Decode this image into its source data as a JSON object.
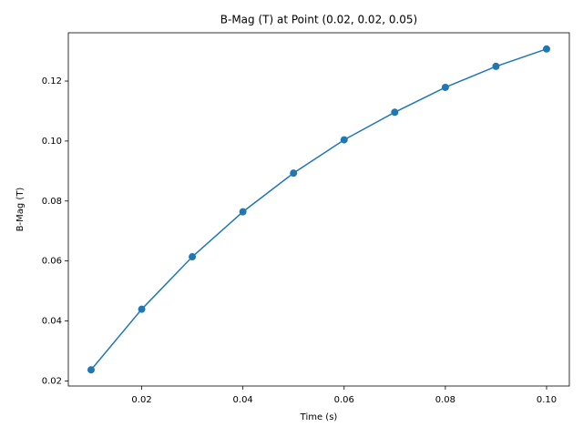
{
  "chart_data": {
    "type": "line",
    "title": "B-Mag (T) at Point (0.02, 0.02, 0.05)",
    "x_label": "Time (s)",
    "y_label": "B-Mag (T)",
    "x": [
      0.01,
      0.02,
      0.03,
      0.04,
      0.05,
      0.06,
      0.07,
      0.08,
      0.09,
      0.1
    ],
    "series": [
      {
        "color": "#1f77b4",
        "marker": "circle",
        "values": [
          0.0237,
          0.0439,
          0.0614,
          0.0764,
          0.0893,
          0.1004,
          0.1096,
          0.1179,
          0.1249,
          0.1307
        ]
      }
    ],
    "xlim": [
      0.0055,
      0.1045
    ],
    "xticks": [
      0.02,
      0.04,
      0.06,
      0.08,
      {
        "value": 0.1,
        "label": "0.10"
      }
    ],
    "ylim": [
      0.0183,
      0.1361
    ],
    "yticks": [
      0.02,
      0.04,
      0.06,
      0.08,
      {
        "value": 0.1,
        "label": "0.10"
      },
      0.12
    ],
    "grid": false
  }
}
